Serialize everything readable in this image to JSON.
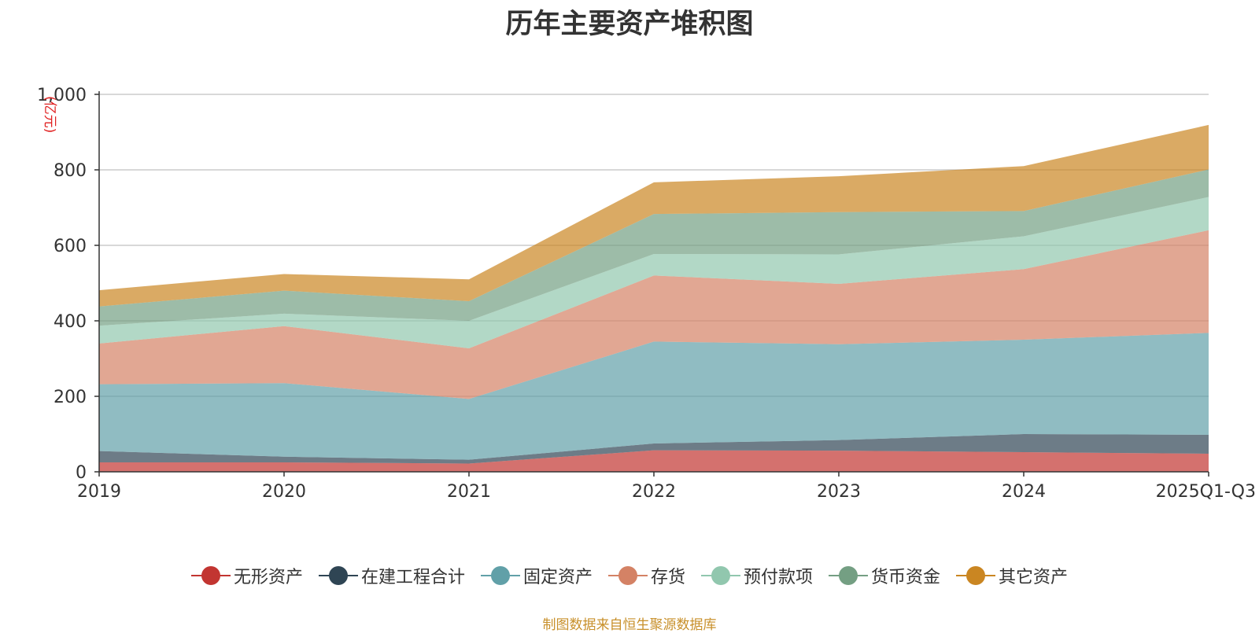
{
  "chart_data": {
    "type": "area",
    "stacked": true,
    "title": "历年主要资产堆积图",
    "ylabel": "(亿元)",
    "xlabel": "",
    "ylim": [
      0,
      1000
    ],
    "yticks": [
      0,
      200,
      400,
      600,
      800,
      1000
    ],
    "ytick_labels": [
      "0",
      "200",
      "400",
      "600",
      "800",
      "1,000"
    ],
    "categories": [
      "2019",
      "2020",
      "2021",
      "2022",
      "2023",
      "2024",
      "2025Q1-Q3"
    ],
    "series": [
      {
        "name": "无形资产",
        "color": "#c23531",
        "values": [
          25,
          25,
          22,
          57,
          56,
          52,
          48
        ]
      },
      {
        "name": "在建工程合计",
        "color": "#2f4554",
        "values": [
          30,
          15,
          10,
          18,
          28,
          48,
          50
        ]
      },
      {
        "name": "固定资产",
        "color": "#61a0a8",
        "values": [
          177,
          195,
          161,
          270,
          254,
          250,
          270
        ]
      },
      {
        "name": "存货",
        "color": "#d48265",
        "values": [
          108,
          151,
          134,
          175,
          160,
          187,
          272
        ]
      },
      {
        "name": "预付款项",
        "color": "#91c7ae",
        "values": [
          47,
          33,
          73,
          57,
          78,
          87,
          88
        ]
      },
      {
        "name": "货币资金",
        "color": "#749f83",
        "values": [
          51,
          61,
          52,
          106,
          112,
          67,
          73
        ]
      },
      {
        "name": "其它资产",
        "color": "#ca8622",
        "values": [
          43,
          44,
          58,
          84,
          95,
          119,
          118
        ]
      }
    ],
    "legend_position": "bottom",
    "grid": true
  },
  "footer": {
    "source": "制图数据来自恒生聚源数据库"
  }
}
